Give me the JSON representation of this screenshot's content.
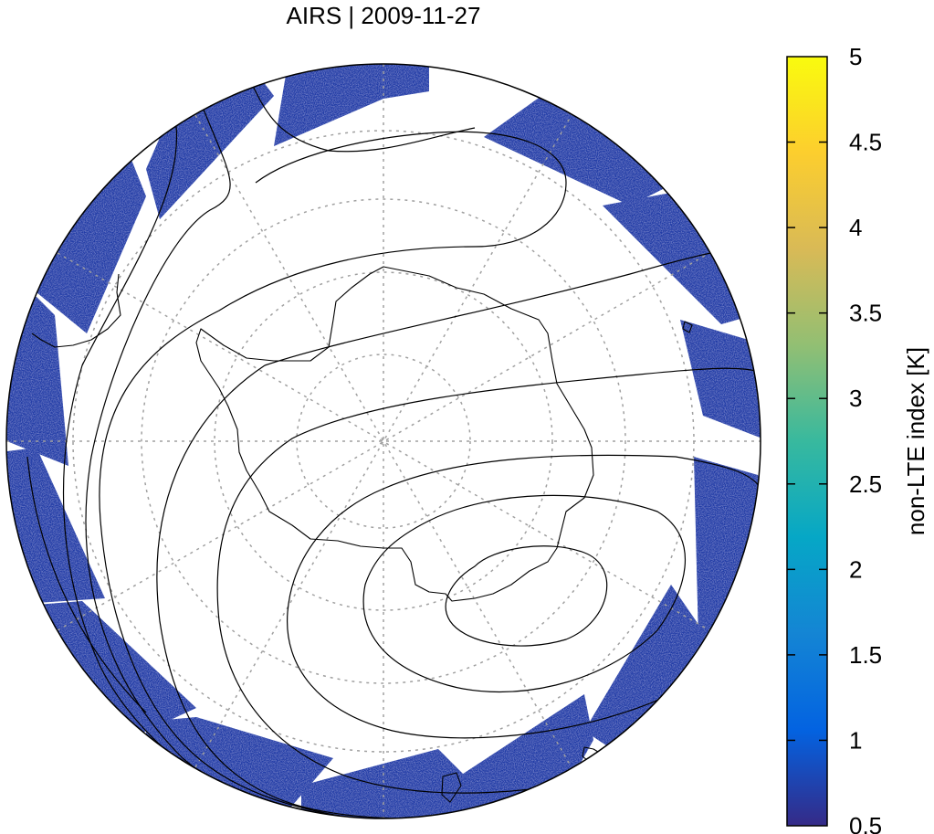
{
  "title": "AIRS | 2009-11-27",
  "projection": "south-polar-stereographic",
  "colormap": {
    "name": "parula",
    "stops": [
      "#352a87",
      "#0363e1",
      "#1485d4",
      "#06a7c6",
      "#38b99e",
      "#92bf73",
      "#d9ba56",
      "#fcce2e",
      "#f9fb0e"
    ]
  },
  "colorbar": {
    "label": "non-LTE index [K]",
    "min": 0.5,
    "max": 5,
    "ticks": [
      "5",
      "4.5",
      "4",
      "3.5",
      "3",
      "2.5",
      "2",
      "1.5",
      "1",
      "0.5"
    ],
    "tick_values": [
      5,
      4.5,
      4,
      3.5,
      3,
      2.5,
      2,
      1.5,
      1,
      0.5
    ]
  },
  "map": {
    "grid_lines": "dotted",
    "grid_color": "#a0a0a0",
    "coastline_color": "#000000",
    "contour_color": "#000000",
    "swath_typical_value": 0.7
  }
}
